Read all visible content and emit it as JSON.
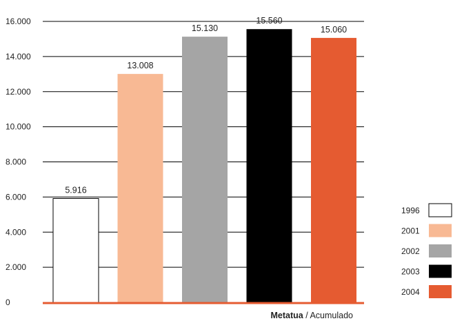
{
  "chart_data": {
    "type": "bar",
    "categories": [
      "1996",
      "2001",
      "2002",
      "2003",
      "2004"
    ],
    "values": [
      5916,
      13008,
      15130,
      15560,
      15060
    ],
    "value_labels": [
      "5.916",
      "13.008",
      "15.130",
      "15.560",
      "15.060"
    ],
    "colors": [
      "#ffffff",
      "#f8b994",
      "#a5a5a5",
      "#000000",
      "#e55b31"
    ],
    "ylim": [
      0,
      16000
    ],
    "yticks": [
      0,
      2000,
      4000,
      6000,
      8000,
      10000,
      12000,
      14000,
      16000
    ],
    "ytick_labels": [
      "0",
      "2.000",
      "4.000",
      "6.000",
      "8.000",
      "10.000",
      "12.000",
      "14.000",
      "16.000"
    ],
    "grid": true,
    "legend_position": "bottom-right",
    "caption_bold": "Metatua",
    "caption_rest": " / Acumulado",
    "baseline_color": "#e55b31"
  }
}
